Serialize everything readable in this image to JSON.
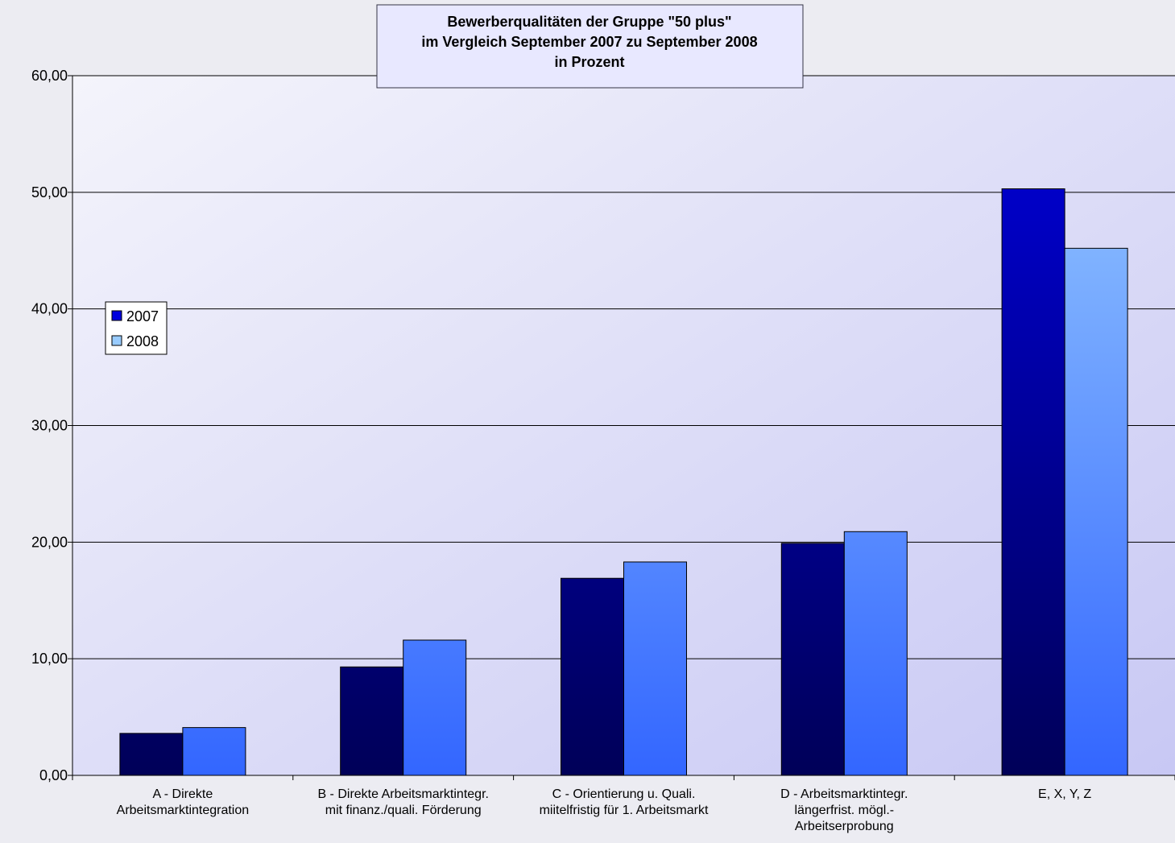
{
  "chart_data": {
    "type": "bar",
    "title": "Bewerberqualitäten der Gruppe \"50 plus\"\nim Vergleich September 2007 zu September 2008\nin Prozent",
    "categories": [
      "A - Direkte\nArbeitsmarktintegration",
      "B - Direkte Arbeitsmarktintegr.\nmit finanz./quali. Förderung",
      "C - Orientierung u. Quali.\nmiitelfristig für 1. Arbeitsmarkt",
      "D - Arbeitsmarktintegr.\nlängerfrist. mögl.-\nArbeitserprobung",
      "E, X, Y, Z"
    ],
    "series": [
      {
        "name": "2007",
        "color": "#0000dd",
        "values": [
          3.6,
          9.3,
          16.9,
          19.9,
          50.3
        ]
      },
      {
        "name": "2008",
        "color": "#99ccff",
        "values": [
          4.1,
          11.6,
          18.3,
          20.9,
          45.2
        ]
      }
    ],
    "ylim": [
      0,
      60
    ],
    "yticks": [
      {
        "value": 0,
        "label": "0,00"
      },
      {
        "value": 10,
        "label": "10,00"
      },
      {
        "value": 20,
        "label": "20,00"
      },
      {
        "value": 30,
        "label": "30,00"
      },
      {
        "value": 40,
        "label": "40,00"
      },
      {
        "value": 50,
        "label": "50,00"
      },
      {
        "value": 60,
        "label": "60,00"
      }
    ],
    "grid": true,
    "legend": "left"
  }
}
